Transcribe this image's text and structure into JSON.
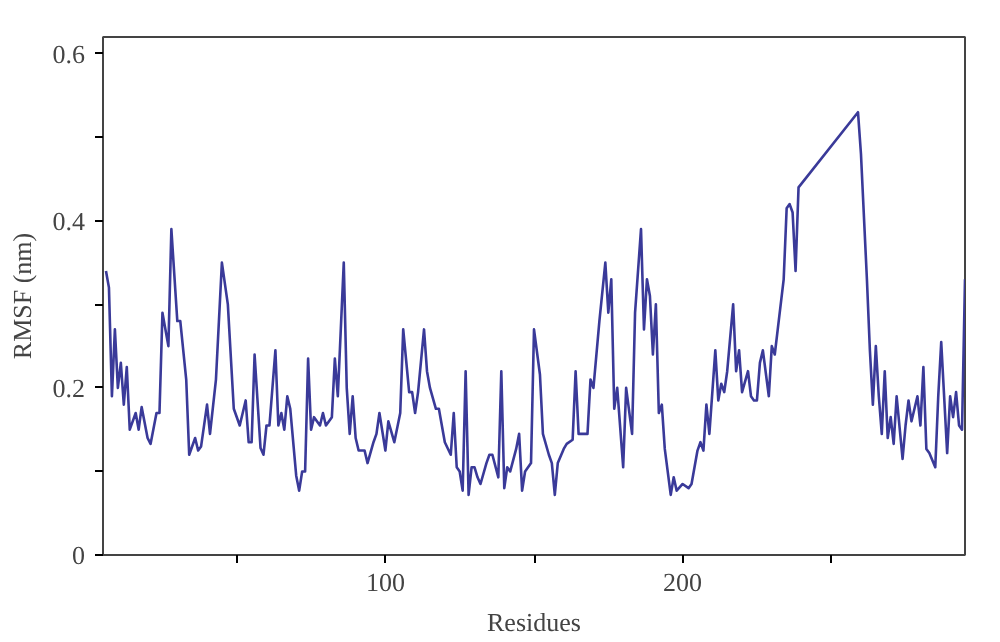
{
  "chart_data": {
    "type": "line",
    "xlabel": "Residues",
    "ylabel": "RMSF (nm)",
    "xlim": [
      5,
      295
    ],
    "ylim": [
      0,
      0.62
    ],
    "xticks": [
      {
        "value": 50,
        "label": null
      },
      100,
      {
        "value": 150,
        "label": null
      },
      200,
      {
        "value": 250,
        "label": null
      }
    ],
    "yticks": [
      0,
      {
        "value": 0.1,
        "label": null
      },
      0.2,
      {
        "value": 0.3,
        "label": null
      },
      0.4,
      {
        "value": 0.5,
        "label": null
      },
      0.6
    ],
    "grid": false,
    "line_style": "solid",
    "series": [
      {
        "color": "#3a3a99",
        "x": [
          6,
          7,
          8,
          9,
          10,
          11,
          12,
          13,
          14,
          16,
          17,
          18,
          20,
          21,
          23,
          24,
          25,
          27,
          28,
          30,
          31,
          33,
          34,
          36,
          37,
          38,
          40,
          41,
          43,
          45,
          47,
          49,
          51,
          53,
          54,
          55,
          56,
          58,
          59,
          60,
          61,
          63,
          64,
          65,
          66,
          67,
          68,
          70,
          71,
          72,
          73,
          74,
          75,
          76,
          78,
          79,
          80,
          82,
          83,
          84,
          86,
          87,
          88,
          89,
          90,
          91,
          93,
          94,
          96,
          97,
          98,
          100,
          101,
          103,
          105,
          106,
          108,
          109,
          110,
          111,
          113,
          114,
          115,
          117,
          118,
          119,
          120,
          122,
          123,
          124,
          125,
          126,
          127,
          128,
          129,
          130,
          131,
          132,
          134,
          135,
          136,
          138,
          139,
          140,
          141,
          142,
          144,
          145,
          146,
          147,
          149,
          150,
          152,
          153,
          155,
          156,
          157,
          158,
          160,
          161,
          163,
          164,
          165,
          166,
          168,
          169,
          170,
          172,
          174,
          175,
          176,
          177,
          178,
          180,
          181,
          183,
          184,
          186,
          187,
          188,
          189,
          190,
          191,
          192,
          193,
          194,
          196,
          197,
          198,
          200,
          202,
          203,
          205,
          206,
          207,
          208,
          209,
          211,
          212,
          213,
          214,
          215,
          217,
          218,
          219,
          220,
          222,
          223,
          224,
          225,
          226,
          227,
          229,
          230,
          231,
          232,
          234,
          235,
          236,
          237,
          238,
          239,
          259,
          260,
          262,
          263,
          264,
          265,
          266,
          267,
          268,
          269,
          270,
          271,
          272,
          274,
          275,
          276,
          277,
          279,
          280,
          281,
          282,
          283,
          285,
          286,
          287,
          289,
          290,
          291,
          292,
          293,
          294,
          295
        ],
        "values": [
          0.34,
          0.32,
          0.19,
          0.27,
          0.2,
          0.23,
          0.18,
          0.225,
          0.15,
          0.17,
          0.15,
          0.177,
          0.14,
          0.133,
          0.17,
          0.17,
          0.29,
          0.25,
          0.39,
          0.28,
          0.28,
          0.21,
          0.12,
          0.14,
          0.125,
          0.13,
          0.18,
          0.145,
          0.21,
          0.35,
          0.3,
          0.175,
          0.155,
          0.185,
          0.135,
          0.135,
          0.24,
          0.128,
          0.12,
          0.155,
          0.155,
          0.245,
          0.155,
          0.17,
          0.15,
          0.19,
          0.175,
          0.095,
          0.077,
          0.1,
          0.1,
          0.235,
          0.15,
          0.165,
          0.155,
          0.17,
          0.155,
          0.165,
          0.235,
          0.19,
          0.35,
          0.2,
          0.145,
          0.19,
          0.14,
          0.125,
          0.125,
          0.11,
          0.135,
          0.145,
          0.17,
          0.125,
          0.16,
          0.135,
          0.17,
          0.27,
          0.195,
          0.195,
          0.17,
          0.195,
          0.27,
          0.22,
          0.2,
          0.175,
          0.175,
          0.155,
          0.135,
          0.12,
          0.17,
          0.105,
          0.1,
          0.077,
          0.22,
          0.072,
          0.105,
          0.105,
          0.093,
          0.085,
          0.11,
          0.12,
          0.12,
          0.093,
          0.22,
          0.08,
          0.105,
          0.1,
          0.127,
          0.145,
          0.077,
          0.1,
          0.11,
          0.27,
          0.216,
          0.145,
          0.12,
          0.11,
          0.072,
          0.11,
          0.127,
          0.133,
          0.138,
          0.22,
          0.145,
          0.145,
          0.145,
          0.21,
          0.2,
          0.28,
          0.35,
          0.29,
          0.33,
          0.175,
          0.2,
          0.105,
          0.2,
          0.145,
          0.29,
          0.39,
          0.27,
          0.33,
          0.31,
          0.24,
          0.3,
          0.17,
          0.18,
          0.127,
          0.072,
          0.093,
          0.077,
          0.085,
          0.08,
          0.085,
          0.125,
          0.135,
          0.125,
          0.18,
          0.145,
          0.245,
          0.185,
          0.205,
          0.195,
          0.22,
          0.3,
          0.22,
          0.245,
          0.195,
          0.22,
          0.19,
          0.185,
          0.185,
          0.23,
          0.245,
          0.19,
          0.25,
          0.24,
          0.27,
          0.33,
          0.415,
          0.42,
          0.41,
          0.34,
          0.44,
          0.53,
          0.48,
          0.33,
          0.245,
          0.18,
          0.25,
          0.19,
          0.145,
          0.22,
          0.14,
          0.165,
          0.133,
          0.19,
          0.115,
          0.155,
          0.185,
          0.16,
          0.19,
          0.155,
          0.225,
          0.127,
          0.122,
          0.105,
          0.19,
          0.255,
          0.122,
          0.19,
          0.165,
          0.195,
          0.155,
          0.15,
          0.33
        ]
      }
    ]
  }
}
